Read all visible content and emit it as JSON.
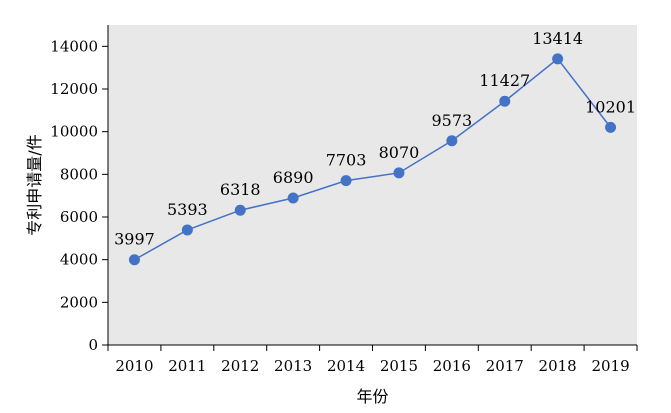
{
  "chart_data": {
    "type": "line",
    "x": [
      "2010",
      "2011",
      "2012",
      "2013",
      "2014",
      "2015",
      "2016",
      "2017",
      "2018",
      "2019"
    ],
    "series": [
      {
        "values": [
          3997,
          5393,
          6318,
          6890,
          7703,
          8070,
          9573,
          11427,
          13414,
          10201
        ]
      }
    ],
    "data_labels": [
      "3997",
      "5393",
      "6318",
      "6890",
      "7703",
      "8070",
      "9573",
      "11427",
      "13414",
      "10201"
    ],
    "xlabel": "年份",
    "ylabel": "专利申请量/件",
    "ylim": [
      0,
      15000
    ],
    "yticks": [
      0,
      2000,
      4000,
      6000,
      8000,
      10000,
      12000,
      14000
    ],
    "ytick_labels": [
      "0",
      "2000",
      "4000",
      "6000",
      "8000",
      "10000",
      "12000",
      "14000"
    ],
    "grid": false,
    "legend": "none",
    "colors": {
      "line": "#4472c4",
      "marker": "#4472c4",
      "plot_bg": "#e8e8e8",
      "axis": "#000000"
    }
  }
}
